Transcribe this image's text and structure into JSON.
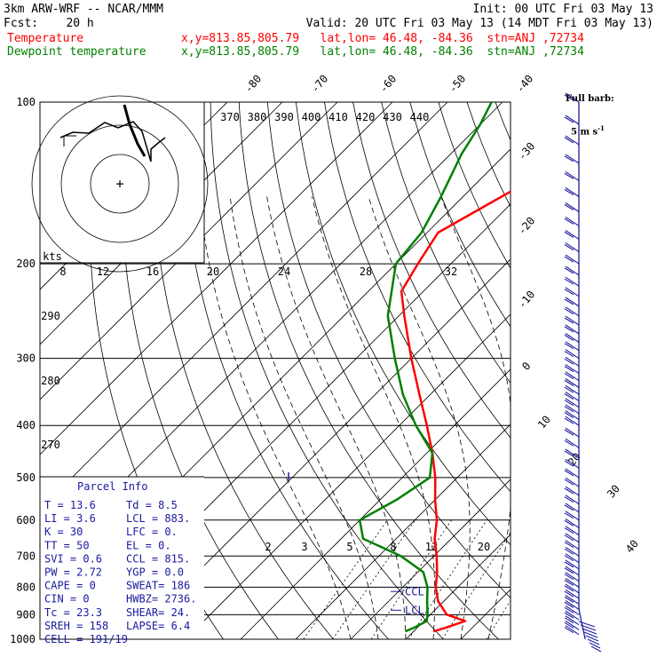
{
  "header": {
    "model": "3km ARW-WRF -- NCAR/MMM",
    "init": "Init: 00 UTC Fri 03 May 13",
    "fcst": "Fcst:    20 h",
    "valid": "Valid: 20 UTC Fri 03 May 13 (14 MDT Fri 03 May 13)",
    "temp_label": "Temperature",
    "temp_loc": "x,y=813.85,805.79   lat,lon= 46.48, -84.36  stn=ANJ ,72734",
    "dew_label": "Dewpoint temperature",
    "dew_loc": "x,y=813.85,805.79   lat,lon= 46.48, -84.36  stn=ANJ ,72734",
    "barb_label_1": "Full barb:",
    "barb_label_2": "5 m s",
    "barb_label_exp": "-1"
  },
  "colors": {
    "temperature": "#ff0000",
    "dewpoint": "#008000",
    "grid": "#000000",
    "panel_text": "#1a1aa0"
  },
  "chart_data": {
    "type": "line",
    "subtype": "skew-T log-P sounding",
    "y_scale": "log",
    "ylim": [
      1000,
      100
    ],
    "xlabel": "",
    "ylabel": "",
    "pressure_ticks": [
      "100",
      "200",
      "300",
      "400",
      "500",
      "600",
      "700",
      "800",
      "900",
      "1000"
    ],
    "isotherm_labels": [
      "-80",
      "-70",
      "-60",
      "-50",
      "-40",
      "-30",
      "-20",
      "-10",
      "0",
      "10",
      "20",
      "30",
      "40"
    ],
    "theta_e_labels": [
      "370",
      "380",
      "390",
      "400",
      "410",
      "420",
      "430",
      "440"
    ],
    "theta_labels": [
      "290",
      "280",
      "270"
    ],
    "hodograph_speed_labels": [
      "kts",
      "8",
      "12",
      "16",
      "20",
      "24",
      "28",
      "32"
    ],
    "mixing_ratio_labels": [
      "2",
      "3",
      "5",
      "8",
      "12",
      "20"
    ],
    "markers": [
      "LCL",
      "CCL"
    ],
    "series": [
      {
        "name": "Temperature",
        "color": "#ff0000",
        "pressure_hPa": [
          967,
          953,
          925,
          900,
          850,
          800,
          750,
          700,
          650,
          600,
          550,
          500,
          450,
          400,
          350,
          300,
          250,
          225,
          200,
          175,
          150,
          125,
          110,
          100
        ],
        "temp_C": [
          13.6,
          15,
          17.5,
          13,
          9,
          6,
          3.5,
          0.5,
          -3,
          -6,
          -10,
          -14,
          -19,
          -25,
          -32,
          -40,
          -49,
          -54,
          -56,
          -58,
          -53,
          -47,
          -44,
          -43
        ]
      },
      {
        "name": "Dewpoint temperature",
        "color": "#008000",
        "pressure_hPa": [
          967,
          950,
          925,
          900,
          850,
          800,
          750,
          700,
          650,
          600,
          550,
          500,
          450,
          400,
          350,
          300,
          250,
          200,
          175,
          150,
          125,
          110,
          100
        ],
        "temp_C": [
          8.5,
          9.5,
          10.5,
          9.5,
          7,
          4.5,
          1,
          -6,
          -16,
          -20,
          -17,
          -15,
          -19,
          -27,
          -35,
          -43,
          -52,
          -60,
          -61,
          -64,
          -68,
          -70,
          -72
        ]
      }
    ]
  },
  "parcel_info": {
    "title": "Parcel Info",
    "rows": [
      [
        "T  =   13.6",
        "Td =   8.5"
      ],
      [
        "LI =    3.6",
        "LCL =  883."
      ],
      [
        "K  =     30",
        "LFC =    0."
      ],
      [
        "TT =     50",
        "EL  =    0."
      ],
      [
        "SVI =   0.6",
        "CCL =  815."
      ],
      [
        "PW =   2.72",
        "YGP =   0.0"
      ],
      [
        "CAPE =    0",
        "SWEAT=  186"
      ],
      [
        "CIN =     0",
        "HWBZ= 2736."
      ],
      [
        "Tc =   23.3",
        "SHEAR=  24."
      ],
      [
        "SREH =  158",
        "LAPSE=  6.4"
      ],
      [
        "CELL = 191/19",
        ""
      ]
    ]
  }
}
